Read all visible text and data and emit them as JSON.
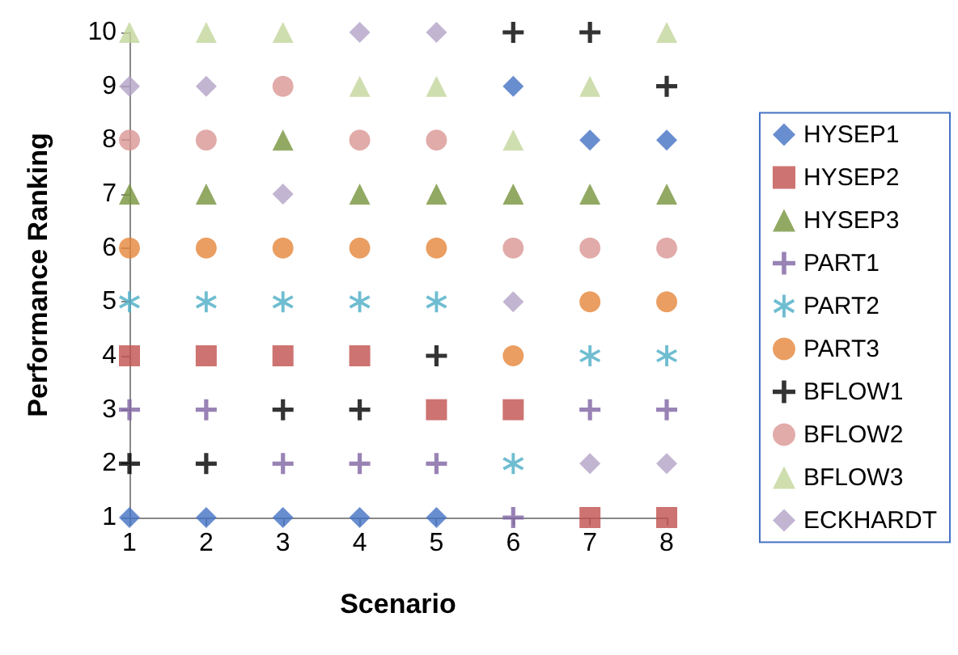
{
  "chart_data": {
    "type": "scatter",
    "xlabel": "Scenario",
    "ylabel": "Performance Ranking",
    "x": [
      1,
      2,
      3,
      4,
      5,
      6,
      7,
      8
    ],
    "xlim": [
      1,
      8
    ],
    "xticks": [
      1,
      2,
      3,
      4,
      5,
      6,
      7,
      8
    ],
    "ylim": [
      1,
      10
    ],
    "yticks": [
      1,
      2,
      3,
      4,
      5,
      6,
      7,
      8,
      9,
      10
    ],
    "grid": false,
    "legend": "right",
    "series": [
      {
        "name": "HYSEP1",
        "color": "#4472c4",
        "marker": "diamond",
        "values": [
          1,
          1,
          1,
          1,
          1,
          9,
          8,
          8
        ]
      },
      {
        "name": "HYSEP2",
        "color": "#c0504d",
        "marker": "square",
        "values": [
          4,
          4,
          4,
          4,
          3,
          3,
          1,
          1
        ]
      },
      {
        "name": "HYSEP3",
        "color": "#77933c",
        "marker": "triangle",
        "values": [
          7,
          7,
          8,
          7,
          7,
          7,
          7,
          7
        ]
      },
      {
        "name": "PART1",
        "color": "#8064a2",
        "marker": "cross",
        "values": [
          3,
          3,
          2,
          2,
          2,
          1,
          3,
          3
        ]
      },
      {
        "name": "PART2",
        "color": "#4bacc6",
        "marker": "star",
        "values": [
          5,
          5,
          5,
          5,
          5,
          2,
          4,
          4
        ]
      },
      {
        "name": "PART3",
        "color": "#e5863a",
        "marker": "circle",
        "values": [
          6,
          6,
          6,
          6,
          6,
          4,
          5,
          5
        ]
      },
      {
        "name": "BFLOW1",
        "color": "#000000",
        "marker": "cross",
        "values": [
          2,
          2,
          3,
          3,
          4,
          10,
          10,
          9
        ]
      },
      {
        "name": "BFLOW2",
        "color": "#d99694",
        "marker": "circle",
        "values": [
          8,
          8,
          9,
          8,
          8,
          6,
          6,
          6
        ]
      },
      {
        "name": "BFLOW3",
        "color": "#c3d69b",
        "marker": "triangle",
        "values": [
          10,
          10,
          10,
          9,
          9,
          8,
          9,
          10
        ]
      },
      {
        "name": "ECKHARDT",
        "color": "#b3a2c7",
        "marker": "diamond",
        "values": [
          9,
          9,
          7,
          10,
          10,
          5,
          2,
          2
        ]
      }
    ]
  }
}
